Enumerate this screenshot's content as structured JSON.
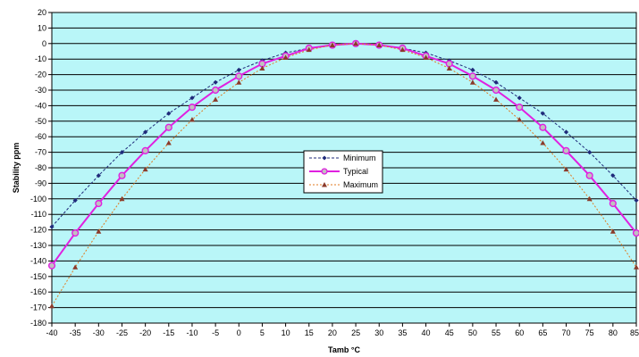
{
  "chart_data": {
    "type": "line",
    "xlabel": "Tamb °C",
    "ylabel": "Stability ppm",
    "xlim": [
      -40,
      85
    ],
    "ylim": [
      -180,
      20
    ],
    "x_step": 5,
    "y_step": 10,
    "grid": "horizontal",
    "legend_position": "center",
    "x": [
      -40,
      -35,
      -30,
      -25,
      -20,
      -15,
      -10,
      -5,
      0,
      5,
      10,
      15,
      20,
      25,
      30,
      35,
      40,
      45,
      50,
      55,
      60,
      65,
      70,
      75,
      80,
      85
    ],
    "series": [
      {
        "name": "Minimum",
        "color": "#1f2a7a",
        "line_style": "dashed",
        "marker": "diamond",
        "values": [
          -118,
          -101,
          -85,
          -70,
          -57,
          -45,
          -35,
          -25,
          -17,
          -11,
          -6,
          -3,
          -1,
          0,
          -1,
          -3,
          -6,
          -11,
          -17,
          -25,
          -35,
          -45,
          -57,
          -70,
          -85,
          -101
        ]
      },
      {
        "name": "Typical",
        "color": "#e020e0",
        "line_style": "solid",
        "marker": "circle",
        "values": [
          -143,
          -122,
          -103,
          -85,
          -69,
          -54,
          -41,
          -30,
          -21,
          -13,
          -8,
          -3,
          -1,
          0,
          -1,
          -3,
          -8,
          -13,
          -21,
          -30,
          -41,
          -54,
          -69,
          -85,
          -103,
          -122
        ]
      },
      {
        "name": "Maximum",
        "color": "#e07a20",
        "line_style": "dashed",
        "marker": "triangle",
        "values": [
          -169,
          -144,
          -121,
          -100,
          -81,
          -64,
          -49,
          -36,
          -25,
          -16,
          -9,
          -4,
          -1,
          0,
          -1,
          -4,
          -9,
          -16,
          -25,
          -36,
          -49,
          -64,
          -81,
          -100,
          -121,
          -144
        ]
      }
    ],
    "colors": {
      "plot_background": "#b9f6f8",
      "grid": "#000000"
    }
  }
}
